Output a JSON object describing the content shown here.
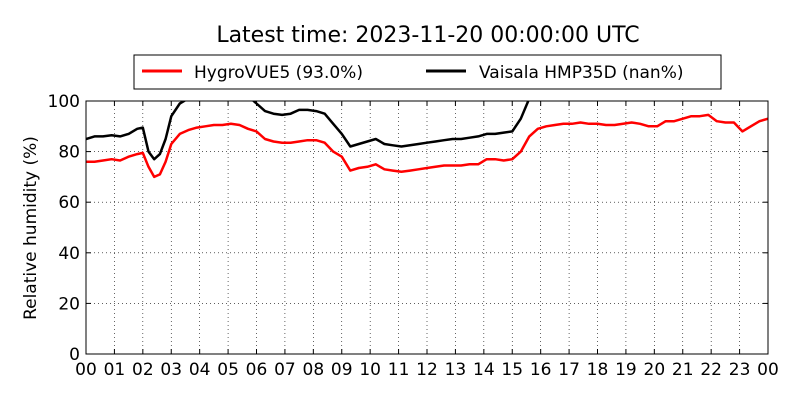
{
  "chart_data": {
    "type": "line",
    "title": "Latest time: 2023-11-20 00:00:00 UTC",
    "xlabel": "",
    "ylabel": "Relative humidity (%)",
    "xlim": [
      0,
      24
    ],
    "ylim": [
      0,
      100
    ],
    "x_ticks": [
      "00",
      "01",
      "02",
      "03",
      "04",
      "05",
      "06",
      "07",
      "08",
      "09",
      "10",
      "11",
      "12",
      "13",
      "14",
      "15",
      "16",
      "17",
      "18",
      "19",
      "20",
      "21",
      "22",
      "23",
      "00"
    ],
    "y_ticks": [
      0,
      20,
      40,
      60,
      80,
      100
    ],
    "grid": true,
    "legend_placement": "top-center",
    "series": [
      {
        "name": "HygroVUE5 (93.0%)",
        "color": "#ff0000",
        "x": [
          0,
          0.3,
          0.6,
          0.9,
          1.2,
          1.5,
          1.8,
          2.0,
          2.2,
          2.4,
          2.6,
          2.8,
          3.0,
          3.3,
          3.6,
          3.9,
          4.2,
          4.5,
          4.8,
          5.1,
          5.4,
          5.7,
          6.0,
          6.3,
          6.6,
          6.9,
          7.2,
          7.5,
          7.8,
          8.1,
          8.4,
          8.7,
          9.0,
          9.3,
          9.6,
          9.9,
          10.2,
          10.5,
          10.8,
          11.1,
          11.4,
          11.7,
          12.0,
          12.3,
          12.6,
          12.9,
          13.2,
          13.5,
          13.8,
          14.1,
          14.4,
          14.7,
          15.0,
          15.3,
          15.6,
          15.9,
          16.2,
          16.5,
          16.8,
          17.1,
          17.4,
          17.7,
          18.0,
          18.3,
          18.6,
          18.9,
          19.2,
          19.5,
          19.8,
          20.1,
          20.4,
          20.7,
          21.0,
          21.3,
          21.6,
          21.9,
          22.2,
          22.5,
          22.8,
          23.1,
          23.4,
          23.7,
          24.0
        ],
        "y": [
          76,
          76,
          76.5,
          77,
          76.5,
          78,
          79,
          79.5,
          74,
          70,
          71,
          76,
          83,
          87,
          88.5,
          89.5,
          90,
          90.5,
          90.5,
          91,
          90.5,
          89,
          88,
          85,
          84,
          83.5,
          83.5,
          84,
          84.5,
          84.5,
          83.5,
          80,
          78,
          72.5,
          73.5,
          74,
          75,
          73,
          72.5,
          72,
          72.5,
          73,
          73.5,
          74,
          74.5,
          74.5,
          74.5,
          75,
          75,
          77,
          77,
          76.5,
          77,
          80,
          86,
          89,
          90,
          90.5,
          91,
          91,
          91.5,
          91,
          91,
          90.5,
          90.5,
          91,
          91.5,
          91,
          90,
          90,
          92,
          92,
          93,
          94,
          94,
          94.5,
          92,
          91.5,
          91.5,
          88,
          90,
          92,
          93
        ]
      },
      {
        "name": "Vaisala HMP35D (nan%)",
        "color": "#000000",
        "x": [
          0,
          0.3,
          0.6,
          0.9,
          1.2,
          1.5,
          1.8,
          2.0,
          2.2,
          2.4,
          2.6,
          2.8,
          3.0,
          3.3,
          3.6,
          3.9,
          4.2,
          4.5,
          4.8,
          5.1,
          5.4,
          5.7,
          6.0,
          6.3,
          6.6,
          6.9,
          7.2,
          7.5,
          7.8,
          8.1,
          8.4,
          8.7,
          9.0,
          9.3,
          9.6,
          9.9,
          10.2,
          10.5,
          10.8,
          11.1,
          11.4,
          11.7,
          12.0,
          12.3,
          12.6,
          12.9,
          13.2,
          13.5,
          13.8,
          14.1,
          14.4,
          14.7,
          15.0,
          15.3,
          15.6
        ],
        "y": [
          85,
          86,
          86,
          86.5,
          86,
          87,
          89,
          89.5,
          80,
          77,
          79,
          85,
          94,
          99,
          101,
          103,
          104,
          104,
          104,
          104,
          103,
          102,
          99,
          96,
          95,
          94.5,
          95,
          96.5,
          96.5,
          96,
          95,
          91,
          87,
          82,
          83,
          84,
          85,
          83,
          82.5,
          82,
          82.5,
          83,
          83.5,
          84,
          84.5,
          85,
          85,
          85.5,
          86,
          87,
          87,
          87.5,
          88,
          93,
          101
        ]
      }
    ]
  }
}
